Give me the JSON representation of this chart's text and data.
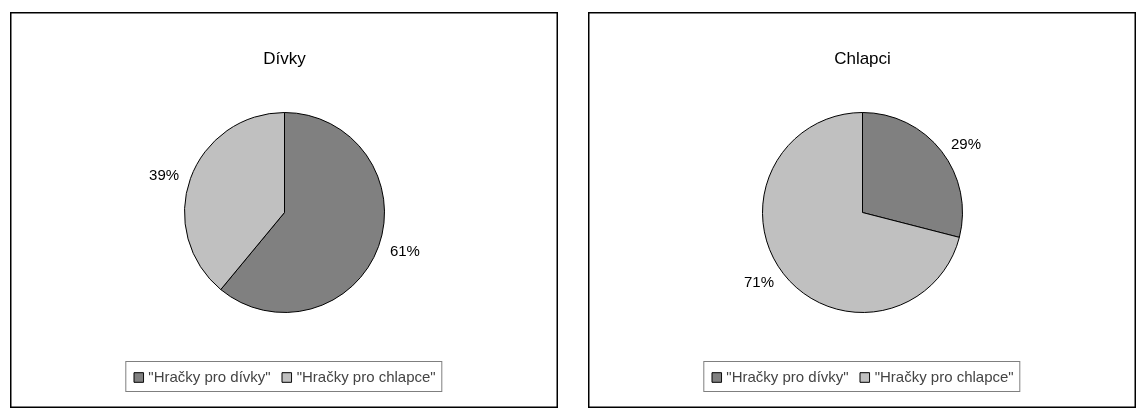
{
  "chart_data": [
    {
      "type": "pie",
      "title": "Dívky",
      "categories": [
        "\"Hračky pro dívky\"",
        "\"Hračky pro chlapce\""
      ],
      "values": [
        61,
        39
      ],
      "colors": [
        "#808080",
        "#c0c0c0"
      ],
      "value_labels": [
        "61%",
        "39%"
      ],
      "legend": "bottom"
    },
    {
      "type": "pie",
      "title": "Chlapci",
      "categories": [
        "\"Hračky pro dívky\"",
        "\"Hračky pro chlapce\""
      ],
      "values": [
        29,
        71
      ],
      "colors": [
        "#808080",
        "#c0c0c0"
      ],
      "value_labels": [
        "29%",
        "71%"
      ],
      "legend": "bottom"
    }
  ]
}
